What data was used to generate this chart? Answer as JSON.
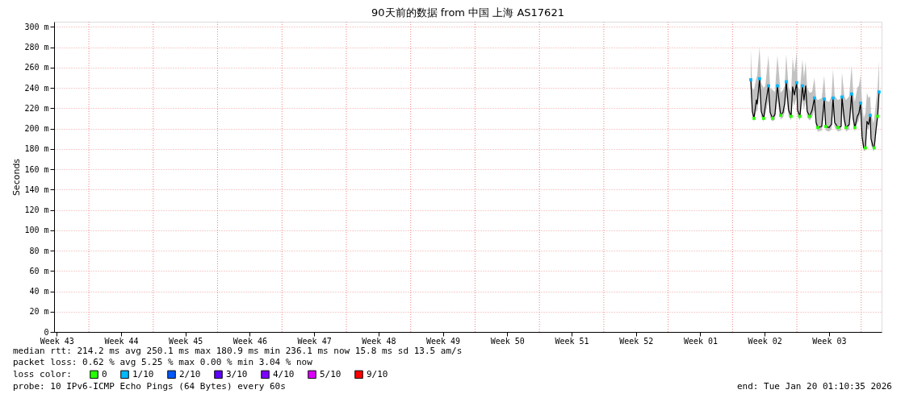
{
  "chart_data": {
    "type": "line",
    "title": "90天前的数据 from 中国 上海 AS17621",
    "ylabel": "Seconds",
    "legend_title": "loss color:",
    "legend": "bottom",
    "grid": true,
    "xlim": [
      "2025-10-22T01:10",
      "2026-01-20T01:10"
    ],
    "xticks": [
      {
        "value": "2025-10-22T08:00",
        "label": "Week 43"
      },
      {
        "value": "2025-10-29T08:00",
        "label": "Week 44"
      },
      {
        "value": "2025-11-05T08:00",
        "label": "Week 45"
      },
      {
        "value": "2025-11-12T08:00",
        "label": "Week 46"
      },
      {
        "value": "2025-11-19T08:00",
        "label": "Week 47"
      },
      {
        "value": "2025-11-26T08:00",
        "label": "Week 48"
      },
      {
        "value": "2025-12-03T08:00",
        "label": "Week 49"
      },
      {
        "value": "2025-12-10T08:00",
        "label": "Week 50"
      },
      {
        "value": "2025-12-17T08:00",
        "label": "Week 51"
      },
      {
        "value": "2025-12-24T08:00",
        "label": "Week 52"
      },
      {
        "value": "2025-12-31T08:00",
        "label": "Week 01"
      },
      {
        "value": "2026-01-07T08:00",
        "label": "Week 02"
      },
      {
        "value": "2026-01-14T08:00",
        "label": "Week 03"
      },
      {
        "value": "2025-10-25T20:00",
        "label": null
      },
      {
        "value": "2025-11-01T20:00",
        "label": null
      },
      {
        "value": "2025-11-08T20:00",
        "label": null
      },
      {
        "value": "2025-11-15T20:00",
        "label": null
      },
      {
        "value": "2025-11-22T20:00",
        "label": null
      },
      {
        "value": "2025-11-29T20:00",
        "label": null
      },
      {
        "value": "2025-12-06T20:00",
        "label": null
      },
      {
        "value": "2025-12-13T20:00",
        "label": null
      },
      {
        "value": "2025-12-20T20:00",
        "label": null
      },
      {
        "value": "2025-12-27T20:00",
        "label": null
      },
      {
        "value": "2026-01-03T20:00",
        "label": null
      },
      {
        "value": "2026-01-10T20:00",
        "label": null
      },
      {
        "value": "2026-01-17T20:00",
        "label": null
      }
    ],
    "ylim": [
      0,
      305
    ],
    "yticks": [
      0,
      {
        "value": 20,
        "label": "20 m"
      },
      {
        "value": 40,
        "label": "40 m"
      },
      {
        "value": 60,
        "label": "60 m"
      },
      {
        "value": 80,
        "label": "80 m"
      },
      {
        "value": 100,
        "label": "100 m"
      },
      {
        "value": 120,
        "label": "120 m"
      },
      {
        "value": 140,
        "label": "140 m"
      },
      {
        "value": 160,
        "label": "160 m"
      },
      {
        "value": 180,
        "label": "180 m"
      },
      {
        "value": 200,
        "label": "200 m"
      },
      {
        "value": 220,
        "label": "220 m"
      },
      {
        "value": 240,
        "label": "240 m"
      },
      {
        "value": 260,
        "label": "260 m"
      },
      {
        "value": 280,
        "label": "280 m"
      },
      {
        "value": 300,
        "label": "300 m"
      }
    ],
    "series": [
      {
        "color": "#000000",
        "x": [
          "2026-01-05T19:39",
          "2026-01-05T23:44",
          "2026-01-06T04:03",
          "2026-01-06T10:17",
          "2026-01-06T12:27",
          "2026-01-06T18:41",
          "2026-01-06T23:01",
          "2026-01-07T05:15",
          "2026-01-07T09:34",
          "2026-01-07T17:58",
          "2026-01-07T22:17",
          "2026-01-08T04:32",
          "2026-01-08T10:46",
          "2026-01-08T17:15",
          "2026-01-09T01:39",
          "2026-01-09T07:53",
          "2026-01-09T12:13",
          "2026-01-09T16:17",
          "2026-01-09T22:32",
          "2026-01-10T05:01",
          "2026-01-10T09:05",
          "2026-01-10T13:25",
          "2026-01-10T19:39",
          "2026-01-10T21:49",
          "2026-01-11T04:03",
          "2026-01-11T10:32",
          "2026-01-11T14:37",
          "2026-01-11T18:56",
          "2026-01-11T23:01",
          "2026-01-12T05:29",
          "2026-01-12T11:44",
          "2026-01-12T17:58",
          "2026-01-12T22:17",
          "2026-01-13T02:37",
          "2026-01-13T12:56",
          "2026-01-13T19:25",
          "2026-01-13T23:29",
          "2026-01-14T07:53",
          "2026-01-14T14:22",
          "2026-01-14T18:27",
          "2026-01-14T22:46",
          "2026-01-15T07:10",
          "2026-01-15T15:34",
          "2026-01-15T17:44",
          "2026-01-15T23:58",
          "2026-01-16T04:17",
          "2026-01-16T12:41",
          "2026-01-16T18:56",
          "2026-01-16T23:15",
          "2026-01-17T03:20",
          "2026-01-17T09:49",
          "2026-01-17T13:53",
          "2026-01-17T18:13",
          "2026-01-17T22:17",
          "2026-01-18T02:37",
          "2026-01-18T06:56",
          "2026-01-18T11:01",
          "2026-01-18T15:20",
          "2026-01-18T19:25",
          "2026-01-18T21:34",
          "2026-01-19T03:49",
          "2026-01-19T05:58",
          "2026-01-19T10:17",
          "2026-01-19T14:37",
          "2026-01-19T18:41"
        ],
        "values": [
          248,
          217,
          210,
          228,
          224,
          249,
          217,
          210,
          222,
          242,
          216,
          210,
          214,
          242,
          213,
          216,
          225,
          246,
          218,
          212,
          241,
          233,
          245,
          218,
          212,
          242,
          228,
          242,
          217,
          212,
          218,
          230,
          206,
          201,
          202,
          229,
          202,
          201,
          204,
          230,
          206,
          201,
          202,
          231,
          209,
          201,
          204,
          234,
          210,
          201,
          212,
          215,
          225,
          192,
          181,
          181,
          207,
          204,
          213,
          190,
          181,
          181,
          198,
          212,
          236
        ],
        "lower": [
          238,
          212,
          207,
          218,
          216,
          236,
          212,
          207,
          214,
          228,
          211,
          207,
          209,
          228,
          209,
          211,
          216,
          232,
          212,
          208,
          228,
          222,
          232,
          212,
          208,
          228,
          218,
          228,
          211,
          208,
          211,
          218,
          201,
          197,
          198,
          216,
          198,
          197,
          199,
          218,
          201,
          197,
          198,
          218,
          203,
          197,
          199,
          220,
          204,
          197,
          205,
          208,
          214,
          186,
          178,
          178,
          200,
          199,
          206,
          184,
          178,
          178,
          192,
          205,
          222
        ],
        "upper": [
          278,
          240,
          238,
          250,
          252,
          280,
          245,
          240,
          242,
          272,
          240,
          238,
          236,
          272,
          235,
          238,
          242,
          273,
          240,
          236,
          270,
          255,
          275,
          242,
          238,
          268,
          250,
          266,
          240,
          235,
          236,
          250,
          230,
          228,
          230,
          252,
          228,
          226,
          232,
          258,
          232,
          228,
          230,
          255,
          232,
          228,
          232,
          262,
          235,
          226,
          240,
          242,
          252,
          225,
          210,
          215,
          235,
          230,
          232,
          215,
          205,
          210,
          225,
          240,
          266
        ]
      },
      {
        "type": "scatter",
        "name": "0",
        "color": "#26ff00",
        "x": [
          "2026-01-06T04:03",
          "2026-01-07T05:15",
          "2026-01-08T04:32",
          "2026-01-09T01:39",
          "2026-01-10T05:01",
          "2026-01-11T04:03",
          "2026-01-12T05:29",
          "2026-01-13T02:37",
          "2026-01-13T23:29",
          "2026-01-15T07:10",
          "2026-01-16T04:17",
          "2026-01-17T03:20",
          "2026-01-18T06:56",
          "2026-01-19T05:58",
          "2026-01-19T14:37"
        ],
        "values": [
          210,
          210,
          210,
          213,
          212,
          212,
          212,
          201,
          202,
          201,
          201,
          201,
          181,
          181,
          212
        ]
      },
      {
        "type": "scatter",
        "name": "1/10",
        "color": "#00b8ff",
        "x": [
          "2026-01-05T19:39",
          "2026-01-06T18:41",
          "2026-01-07T17:58",
          "2026-01-08T17:15",
          "2026-01-09T16:17",
          "2026-01-10T19:39",
          "2026-01-11T10:32",
          "2026-01-12T17:58",
          "2026-01-13T19:25",
          "2026-01-14T18:27",
          "2026-01-15T17:44",
          "2026-01-16T18:56",
          "2026-01-17T18:13",
          "2026-01-18T19:25",
          "2026-01-19T18:41"
        ],
        "values": [
          248,
          249,
          242,
          242,
          246,
          245,
          242,
          230,
          229,
          230,
          231,
          234,
          225,
          213,
          236
        ]
      },
      {
        "type": "scatter",
        "name": "2/10",
        "color": "#0059ff"
      },
      {
        "type": "scatter",
        "name": "3/10",
        "color": "#5e00ff"
      },
      {
        "type": "scatter",
        "name": "4/10",
        "color": "#7e00ff"
      },
      {
        "type": "scatter",
        "name": "5/10",
        "color": "#dd00ff"
      },
      {
        "type": "scatter",
        "name": "9/10",
        "color": "#ff0000"
      }
    ],
    "annotations": [
      "median rtt:  214.2 ms avg  250.1 ms max  180.9 ms min  236.1 ms now  15.8 ms sd  13.5   am/s",
      "packet loss: 0.62 % avg  5.25 % max  0.00 % min  3.04 % now",
      "probe:       10 IPv6-ICMP Echo Pings (64 Bytes) every 60s",
      "end: Tue Jan 20 01:10:35 2026"
    ]
  }
}
